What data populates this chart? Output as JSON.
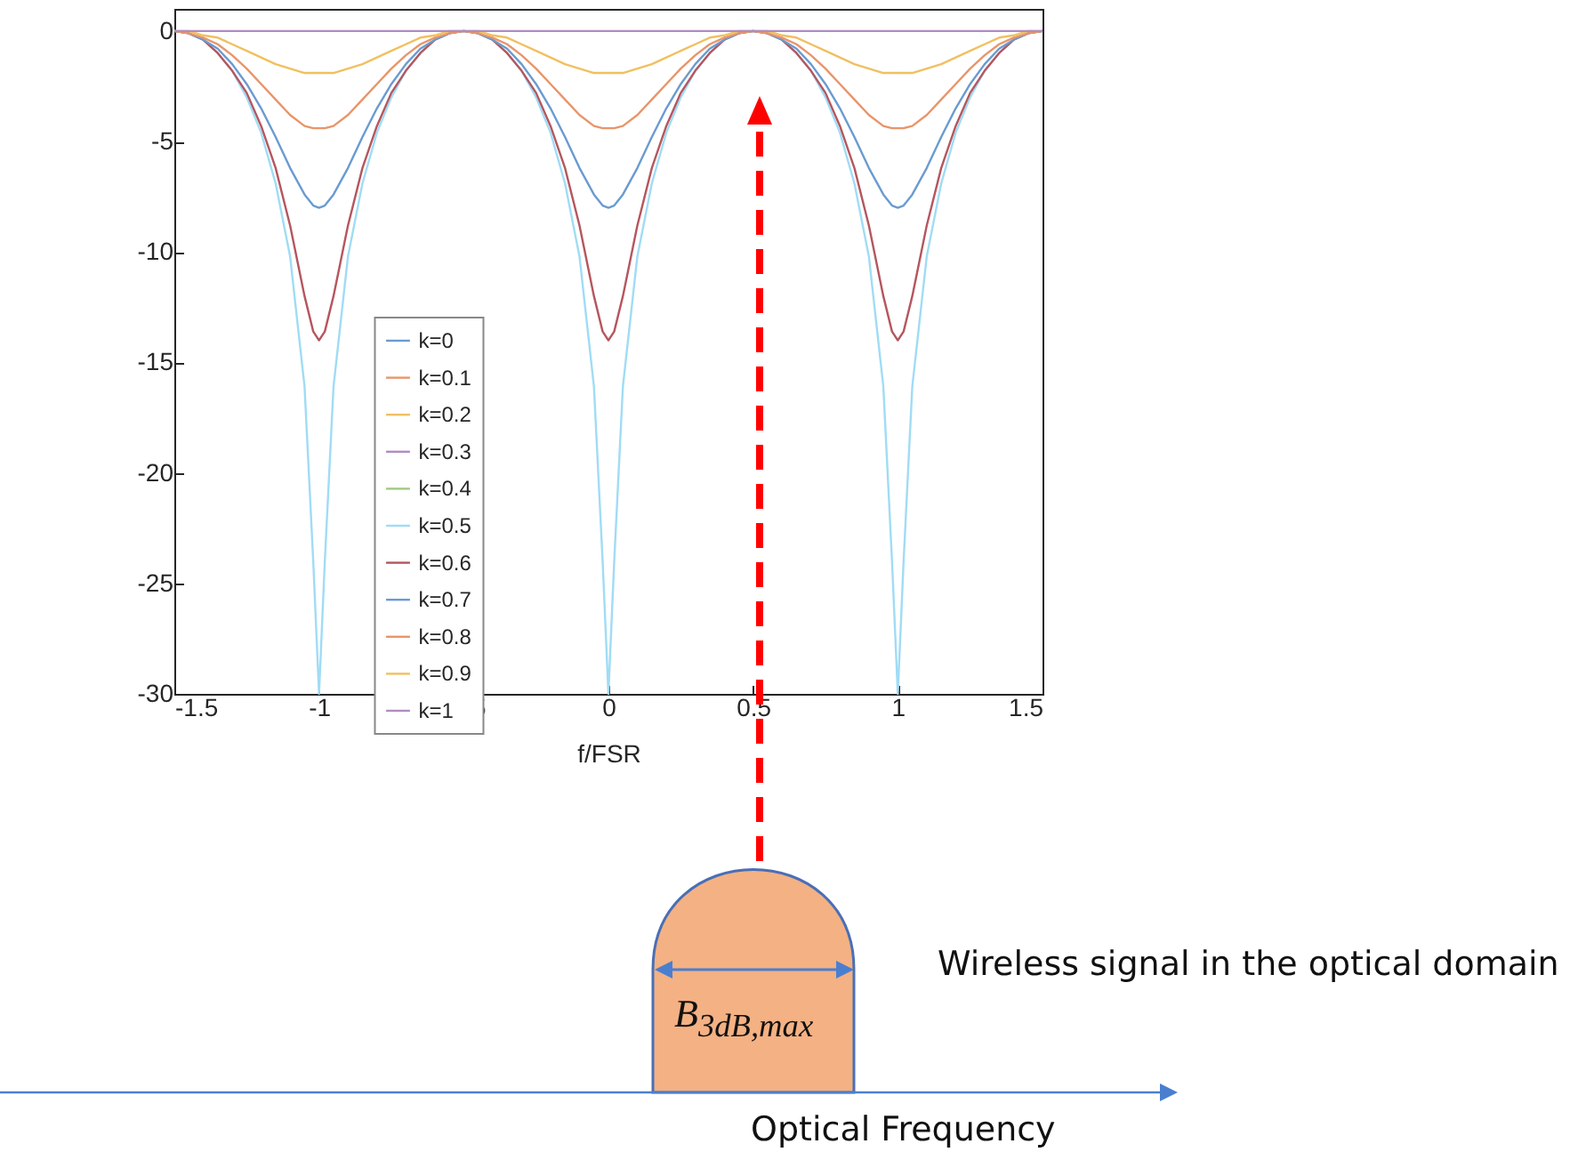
{
  "chart_data": {
    "type": "line",
    "xlabel": "f/FSR",
    "xlim": [
      -1.5,
      1.5
    ],
    "xticks": [
      -1.5,
      -1,
      -0.5,
      0,
      0.5,
      1,
      1.5
    ],
    "ylim": [
      -30,
      1
    ],
    "yticks": [
      -30,
      -25,
      -20,
      -15,
      -10,
      -5,
      0
    ],
    "legend": "bottom left",
    "marker": "none",
    "line_style": "solid",
    "x": [
      -1.5,
      -1.45,
      -1.4,
      -1.35,
      -1.3,
      -1.25,
      -1.2,
      -1.15,
      -1.1,
      -1.05,
      -1.02,
      -1,
      -0.98,
      -0.95,
      -0.9,
      -0.85,
      -0.8,
      -0.75,
      -0.7,
      -0.65,
      -0.6,
      -0.55,
      -0.5,
      -0.45,
      -0.4,
      -0.35,
      -0.3,
      -0.25,
      -0.2,
      -0.15,
      -0.1,
      -0.05,
      -0.02,
      0,
      0.02,
      0.05,
      0.1,
      0.15,
      0.2,
      0.25,
      0.3,
      0.35,
      0.4,
      0.45,
      0.5,
      0.55,
      0.6,
      0.65,
      0.7,
      0.75,
      0.8,
      0.85,
      0.9,
      0.95,
      0.98,
      1,
      1.02,
      1.05,
      1.1,
      1.15,
      1.2,
      1.25,
      1.3,
      1.35,
      1.4,
      1.45,
      1.5
    ],
    "series": [
      {
        "name": "k=0",
        "color": "#6a9bd1",
        "values": [
          null,
          null,
          null,
          null,
          null,
          null,
          null,
          null,
          null,
          null,
          null,
          null,
          null,
          null,
          null,
          null,
          null,
          null,
          null,
          null,
          null,
          null,
          null,
          null,
          null,
          null,
          null,
          null,
          null,
          null,
          null,
          null,
          null,
          null,
          null,
          null,
          null,
          null,
          null,
          null,
          null,
          null,
          null,
          null,
          null,
          null,
          null,
          null,
          null,
          null,
          null,
          null,
          null,
          null,
          null,
          null,
          null,
          null,
          null,
          null,
          null,
          null,
          null,
          null,
          null,
          null,
          null
        ]
      },
      {
        "name": "k=0.1",
        "color": "#e8956a",
        "values": [
          null,
          null,
          null,
          null,
          null,
          null,
          null,
          null,
          null,
          null,
          null,
          null,
          null,
          null,
          null,
          null,
          null,
          null,
          null,
          null,
          null,
          null,
          null,
          null,
          null,
          null,
          null,
          null,
          null,
          null,
          null,
          null,
          null,
          null,
          null,
          null,
          null,
          null,
          null,
          null,
          null,
          null,
          null,
          null,
          null,
          null,
          null,
          null,
          null,
          null,
          null,
          null,
          null,
          null,
          null,
          null,
          null,
          null,
          null,
          null,
          null,
          null,
          null,
          null,
          null,
          null,
          null
        ]
      },
      {
        "name": "k=0.2",
        "color": "#f0c060",
        "values": [
          null,
          null,
          null,
          null,
          null,
          null,
          null,
          null,
          null,
          null,
          null,
          null,
          null,
          null,
          null,
          null,
          null,
          null,
          null,
          null,
          null,
          null,
          null,
          null,
          null,
          null,
          null,
          null,
          null,
          null,
          null,
          null,
          null,
          null,
          null,
          null,
          null,
          null,
          null,
          null,
          null,
          null,
          null,
          null,
          null,
          null,
          null,
          null,
          null,
          null,
          null,
          null,
          null,
          null,
          null,
          null,
          null,
          null,
          null,
          null,
          null,
          null,
          null,
          null,
          null,
          null,
          null
        ]
      },
      {
        "name": "k=0.3",
        "color": "#b08cc0",
        "values": [
          null,
          null,
          null,
          null,
          null,
          null,
          null,
          null,
          null,
          null,
          null,
          null,
          null,
          null,
          null,
          null,
          null,
          null,
          null,
          null,
          null,
          null,
          null,
          null,
          null,
          null,
          null,
          null,
          null,
          null,
          null,
          null,
          null,
          null,
          null,
          null,
          null,
          null,
          null,
          null,
          null,
          null,
          null,
          null,
          null,
          null,
          null,
          null,
          null,
          null,
          null,
          null,
          null,
          null,
          null,
          null,
          null,
          null,
          null,
          null,
          null,
          null,
          null,
          null,
          null,
          null,
          null
        ]
      },
      {
        "name": "k=0.4",
        "color": "#a3c880",
        "values": [
          null,
          null,
          null,
          null,
          null,
          null,
          null,
          null,
          null,
          null,
          null,
          null,
          null,
          null,
          null,
          null,
          null,
          null,
          null,
          null,
          null,
          null,
          null,
          null,
          null,
          null,
          null,
          null,
          null,
          null,
          null,
          null,
          null,
          null,
          null,
          null,
          null,
          null,
          null,
          null,
          null,
          null,
          null,
          null,
          null,
          null,
          null,
          null,
          null,
          null,
          null,
          null,
          null,
          null,
          null,
          null,
          null,
          null,
          null,
          null,
          null,
          null,
          null,
          null,
          null,
          null,
          null
        ]
      },
      {
        "name": "k=0.5",
        "color": "#a0dcf5",
        "values": [
          0,
          -0.1,
          -0.4,
          -1,
          -1.8,
          -3,
          -4.6,
          -6.9,
          -10.2,
          -16.1,
          -24,
          -30,
          -24,
          -16.1,
          -10.2,
          -6.9,
          -4.6,
          -3,
          -1.8,
          -1,
          -0.4,
          -0.1,
          0,
          -0.1,
          -0.4,
          -1,
          -1.8,
          -3,
          -4.6,
          -6.9,
          -10.2,
          -16.1,
          -24,
          -30,
          -24,
          -16.1,
          -10.2,
          -6.9,
          -4.6,
          -3,
          -1.8,
          -1,
          -0.4,
          -0.1,
          0,
          -0.1,
          -0.4,
          -1,
          -1.8,
          -3,
          -4.6,
          -6.9,
          -10.2,
          -16.1,
          -24,
          -30,
          -24,
          -16.1,
          -10.2,
          -6.9,
          -4.6,
          -3,
          -1.8,
          -1,
          -0.4,
          -0.1,
          0
        ]
      },
      {
        "name": "k=0.6",
        "color": "#b5565e",
        "values": [
          0,
          -0.1,
          -0.4,
          -1,
          -1.8,
          -2.8,
          -4.3,
          -6.2,
          -8.8,
          -12,
          -13.6,
          -14,
          -13.6,
          -12,
          -8.8,
          -6.2,
          -4.3,
          -2.8,
          -1.8,
          -1,
          -0.4,
          -0.1,
          0,
          -0.1,
          -0.4,
          -1,
          -1.8,
          -2.8,
          -4.3,
          -6.2,
          -8.8,
          -12,
          -13.6,
          -14,
          -13.6,
          -12,
          -8.8,
          -6.2,
          -4.3,
          -2.8,
          -1.8,
          -1,
          -0.4,
          -0.1,
          0,
          -0.1,
          -0.4,
          -1,
          -1.8,
          -2.8,
          -4.3,
          -6.2,
          -8.8,
          -12,
          -13.6,
          -14,
          -13.6,
          -12,
          -8.8,
          -6.2,
          -4.3,
          -2.8,
          -1.8,
          -1,
          -0.4,
          -0.1,
          0
        ]
      },
      {
        "name": "k=0.7",
        "color": "#6a9bd1",
        "values": [
          0,
          -0.1,
          -0.4,
          -0.8,
          -1.5,
          -2.4,
          -3.5,
          -4.8,
          -6.2,
          -7.4,
          -7.9,
          -8,
          -7.9,
          -7.4,
          -6.2,
          -4.8,
          -3.5,
          -2.4,
          -1.5,
          -0.8,
          -0.4,
          -0.1,
          0,
          -0.1,
          -0.4,
          -0.8,
          -1.5,
          -2.4,
          -3.5,
          -4.8,
          -6.2,
          -7.4,
          -7.9,
          -8,
          -7.9,
          -7.4,
          -6.2,
          -4.8,
          -3.5,
          -2.4,
          -1.5,
          -0.8,
          -0.4,
          -0.1,
          0,
          -0.1,
          -0.4,
          -0.8,
          -1.5,
          -2.4,
          -3.5,
          -4.8,
          -6.2,
          -7.4,
          -7.9,
          -8,
          -7.9,
          -7.4,
          -6.2,
          -4.8,
          -3.5,
          -2.4,
          -1.5,
          -0.8,
          -0.4,
          -0.1,
          0
        ]
      },
      {
        "name": "k=0.8",
        "color": "#e8956a",
        "values": [
          0,
          -0.1,
          -0.3,
          -0.6,
          -1.1,
          -1.7,
          -2.4,
          -3.1,
          -3.8,
          -4.3,
          -4.4,
          -4.4,
          -4.4,
          -4.3,
          -3.8,
          -3.1,
          -2.4,
          -1.7,
          -1.1,
          -0.6,
          -0.3,
          -0.1,
          0,
          -0.1,
          -0.3,
          -0.6,
          -1.1,
          -1.7,
          -2.4,
          -3.1,
          -3.8,
          -4.3,
          -4.4,
          -4.4,
          -4.4,
          -4.3,
          -3.8,
          -3.1,
          -2.4,
          -1.7,
          -1.1,
          -0.6,
          -0.3,
          -0.1,
          0,
          -0.1,
          -0.3,
          -0.6,
          -1.1,
          -1.7,
          -2.4,
          -3.1,
          -3.8,
          -4.3,
          -4.4,
          -4.4,
          -4.4,
          -4.3,
          -3.8,
          -3.1,
          -2.4,
          -1.7,
          -1.1,
          -0.6,
          -0.3,
          -0.1,
          0
        ]
      },
      {
        "name": "k=0.9",
        "color": "#f0c060",
        "values": [
          0,
          0,
          -0.2,
          -0.3,
          -0.6,
          -0.9,
          -1.2,
          -1.5,
          -1.7,
          -1.9,
          -1.9,
          -1.9,
          -1.9,
          -1.9,
          -1.7,
          -1.5,
          -1.2,
          -0.9,
          -0.6,
          -0.3,
          -0.2,
          0,
          0,
          0,
          -0.2,
          -0.3,
          -0.6,
          -0.9,
          -1.2,
          -1.5,
          -1.7,
          -1.9,
          -1.9,
          -1.9,
          -1.9,
          -1.9,
          -1.7,
          -1.5,
          -1.2,
          -0.9,
          -0.6,
          -0.3,
          -0.2,
          0,
          0,
          0,
          -0.2,
          -0.3,
          -0.6,
          -0.9,
          -1.2,
          -1.5,
          -1.7,
          -1.9,
          -1.9,
          -1.9,
          -1.9,
          -1.9,
          -1.7,
          -1.5,
          -1.2,
          -0.9,
          -0.6,
          -0.3,
          -0.2,
          0,
          0
        ]
      },
      {
        "name": "k=1",
        "color": "#b08cc0",
        "values": [
          0,
          0,
          0,
          0,
          0,
          0,
          0,
          0,
          0,
          0,
          0,
          0,
          0,
          0,
          0,
          0,
          0,
          0,
          0,
          0,
          0,
          0,
          0,
          0,
          0,
          0,
          0,
          0,
          0,
          0,
          0,
          0,
          0,
          0,
          0,
          0,
          0,
          0,
          0,
          0,
          0,
          0,
          0,
          0,
          0,
          0,
          0,
          0,
          0,
          0,
          0,
          0,
          0,
          0,
          0,
          0,
          0,
          0,
          0,
          0,
          0,
          0,
          0,
          0,
          0,
          0,
          0
        ]
      }
    ],
    "annotations": [
      "Wireless signal in the optical domain",
      "B$_{3dB,max}$",
      "Optical Frequency"
    ]
  }
}
